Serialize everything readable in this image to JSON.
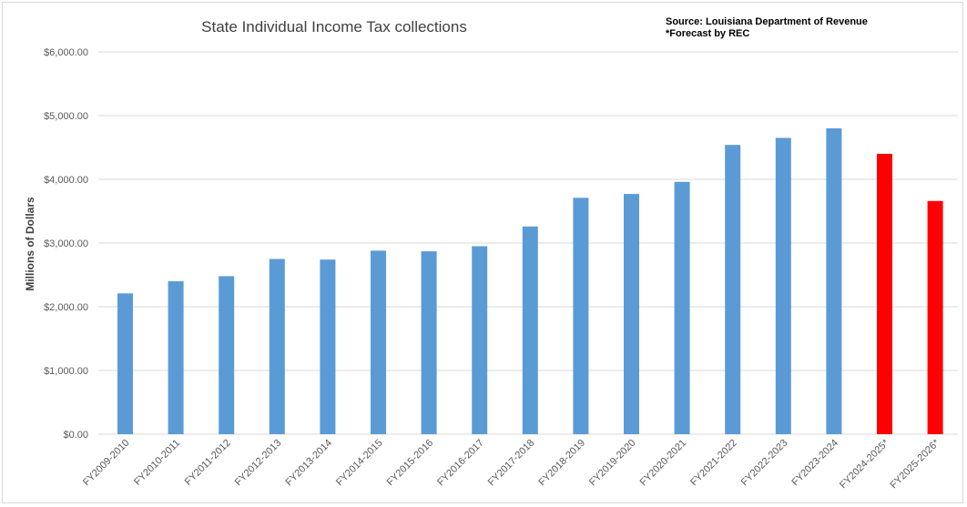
{
  "chart_data": {
    "type": "bar",
    "title": "State Individual Income Tax collections",
    "source_line1": "Source: Louisiana Department of Revenue",
    "source_line2": "*Forecast by REC",
    "ylabel": "Millions of Dollars",
    "xlabel": "",
    "ylim": [
      0,
      6000
    ],
    "yticks": [
      "$0.00",
      "$1,000.00",
      "$2,000.00",
      "$3,000.00",
      "$4,000.00",
      "$5,000.00",
      "$6,000.00"
    ],
    "categories": [
      "FY2009-2010",
      "FY2010-2011",
      "FY2011-2012",
      "FY2012-2013",
      "FY2013-2014",
      "FY2014-2015",
      "FY2015-2016",
      "FY2016-2017",
      "FY2017-2018",
      "FY2018-2019",
      "FY2019-2020",
      "FY2020-2021",
      "FY2021-2022",
      "FY2022-2023",
      "FY2023-2024",
      "FY2024-2025*",
      "FY2025-2026*"
    ],
    "values": [
      2210,
      2400,
      2480,
      2750,
      2740,
      2880,
      2870,
      2950,
      3260,
      3710,
      3770,
      3960,
      4540,
      4650,
      4800,
      4400,
      3660
    ],
    "colors": [
      "#5b9bd5",
      "#5b9bd5",
      "#5b9bd5",
      "#5b9bd5",
      "#5b9bd5",
      "#5b9bd5",
      "#5b9bd5",
      "#5b9bd5",
      "#5b9bd5",
      "#5b9bd5",
      "#5b9bd5",
      "#5b9bd5",
      "#5b9bd5",
      "#5b9bd5",
      "#5b9bd5",
      "#ff0000",
      "#ff0000"
    ],
    "grid": true,
    "legend": "none"
  }
}
